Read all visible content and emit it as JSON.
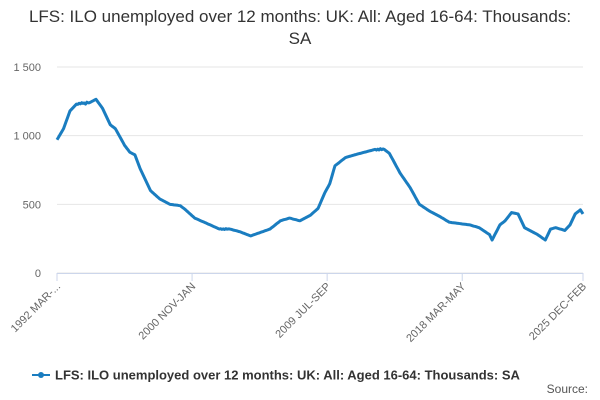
{
  "chart_data": {
    "type": "line",
    "title": "LFS: ILO unemployed over 12 months: UK: All: Aged 16-64: Thousands: SA",
    "source": "Source:",
    "categories": [
      "1992 MAR-...",
      null,
      null,
      null,
      null,
      null,
      null,
      null,
      null,
      null,
      null,
      null,
      null,
      null,
      null,
      null,
      null,
      null,
      null,
      null,
      null,
      null,
      null,
      null,
      null,
      null,
      null,
      null,
      null,
      null,
      null,
      null,
      null,
      null,
      null,
      null,
      null,
      null,
      null,
      null,
      null,
      null,
      null,
      null,
      null,
      null,
      null,
      null,
      null,
      null,
      null,
      null,
      null,
      null,
      null,
      null,
      null,
      null,
      null,
      null,
      null,
      null,
      null,
      null,
      null,
      null,
      null,
      null,
      null,
      null,
      null,
      null,
      null,
      null,
      null,
      null,
      null,
      null,
      null,
      null,
      null,
      null,
      null,
      null,
      null,
      null,
      null,
      null,
      null,
      null,
      null,
      null,
      null,
      null,
      null,
      null,
      null,
      null,
      null,
      null,
      null,
      null,
      null,
      null,
      "2000 NOV-JAN",
      null,
      null,
      null,
      null,
      null,
      null,
      null,
      null,
      null,
      null,
      null,
      null,
      null,
      null,
      null,
      null,
      null,
      null,
      null,
      null,
      null,
      null,
      null,
      null,
      null,
      null,
      null,
      null,
      null,
      null,
      null,
      null,
      null,
      null,
      null,
      null,
      null,
      null,
      null,
      null,
      null,
      null,
      null,
      null,
      null,
      null,
      null,
      null,
      null,
      null,
      null,
      null,
      null,
      null,
      null,
      null,
      null,
      null,
      null,
      null,
      null,
      null,
      null,
      null,
      null,
      null,
      null,
      null,
      null,
      null,
      null,
      null,
      null,
      null,
      null,
      null,
      null,
      null,
      null,
      null,
      null,
      null,
      null,
      null,
      null,
      null,
      null,
      null,
      null,
      null,
      null,
      null,
      null,
      null,
      null,
      null,
      null,
      null,
      null,
      null,
      null,
      null,
      null,
      "2009 JUL-SEP",
      null,
      null,
      null,
      null,
      null,
      null,
      null,
      null,
      null,
      null,
      null,
      null,
      null,
      null,
      null,
      null,
      null,
      null,
      null,
      null,
      null,
      null,
      null,
      null,
      null,
      null,
      null,
      null,
      null,
      null,
      null,
      null,
      null,
      null,
      null,
      null,
      null,
      null,
      null,
      null,
      null,
      null,
      null,
      null,
      null,
      null,
      null,
      null,
      null,
      null,
      null,
      null,
      null,
      null,
      null,
      null,
      null,
      null,
      null,
      null,
      null,
      null,
      null,
      null,
      null,
      null,
      null,
      null,
      null,
      null,
      null,
      null,
      null,
      null,
      null,
      null,
      null,
      null,
      null,
      null,
      null,
      null,
      null,
      null,
      null,
      null,
      null,
      null,
      null,
      null,
      null,
      null,
      null,
      null,
      null,
      null,
      null,
      null,
      null,
      null,
      null,
      null,
      null,
      "2018 MAR-MAY",
      null,
      null,
      null,
      null,
      null,
      null,
      null,
      null,
      null,
      null,
      null,
      null,
      null,
      null,
      null,
      null,
      null,
      null,
      null,
      null,
      null,
      null,
      null,
      null,
      null,
      null,
      null,
      null,
      null,
      null,
      null,
      null,
      null,
      null,
      null,
      null,
      null,
      null,
      null,
      null,
      null,
      null,
      null,
      null,
      null,
      null,
      null,
      null,
      null,
      null,
      null,
      null,
      null,
      null,
      null,
      null,
      null,
      null,
      null,
      null,
      null,
      null,
      null,
      null,
      null,
      null,
      null,
      null,
      null,
      null,
      null,
      null,
      null,
      null,
      null,
      null,
      null,
      null,
      null,
      null,
      null,
      null,
      null,
      null,
      null,
      null,
      null,
      null,
      null,
      null,
      null,
      null,
      "2025 DEC-FEB"
    ],
    "series": [
      {
        "name": "LFS: ILO unemployed over 12 months: UK: All: Aged 16-64: Thousands: SA",
        "color": "#1a7dc0",
        "values": [
          970,
          986,
          1002,
          1018,
          1034,
          1050,
          1076,
          1102,
          1128,
          1154,
          1180,
          1190,
          1200,
          1210,
          1220,
          1230,
          1228,
          1236,
          1232,
          1240,
          1235,
          1238,
          1230,
          1244,
          1239,
          1240,
          1245,
          1250,
          1255,
          1260,
          1265,
          1252,
          1239,
          1226,
          1213,
          1200,
          1180,
          1160,
          1140,
          1120,
          1100,
          1080,
          1072,
          1065,
          1058,
          1050,
          1033,
          1016,
          999,
          982,
          965,
          948,
          930,
          918,
          905,
          893,
          880,
          875,
          870,
          865,
          860,
          835,
          810,
          785,
          760,
          740,
          720,
          700,
          680,
          660,
          640,
          620,
          600,
          591,
          583,
          574,
          566,
          557,
          549,
          540,
          535,
          530,
          525,
          520,
          515,
          510,
          505,
          500,
          499,
          498,
          496,
          495,
          494,
          493,
          491,
          490,
          482,
          475,
          468,
          460,
          451,
          443,
          434,
          426,
          417,
          409,
          400,
          396,
          392,
          388,
          383,
          379,
          375,
          371,
          367,
          363,
          358,
          354,
          350,
          346,
          341,
          337,
          333,
          329,
          324,
          320,
          322,
          318,
          321,
          317,
          323,
          319,
          321,
          320,
          318,
          315,
          312,
          310,
          308,
          305,
          302,
          300,
          296,
          292,
          289,
          285,
          281,
          278,
          274,
          270,
          273,
          277,
          280,
          283,
          287,
          290,
          293,
          297,
          300,
          303,
          307,
          310,
          313,
          317,
          320,
          328,
          335,
          342,
          350,
          358,
          365,
          372,
          380,
          383,
          386,
          389,
          391,
          394,
          397,
          400,
          398,
          395,
          392,
          390,
          388,
          385,
          382,
          380,
          385,
          390,
          395,
          400,
          405,
          410,
          415,
          420,
          428,
          437,
          445,
          453,
          462,
          470,
          492,
          514,
          536,
          558,
          580,
          598,
          615,
          632,
          650,
          682,
          715,
          748,
          780,
          788,
          795,
          802,
          810,
          818,
          825,
          832,
          840,
          843,
          846,
          849,
          851,
          854,
          857,
          860,
          862,
          865,
          868,
          870,
          872,
          875,
          878,
          880,
          882,
          885,
          888,
          890,
          892,
          895,
          898,
          900,
          895,
          902,
          896,
          905,
          898,
          903,
          900,
          892,
          885,
          878,
          870,
          852,
          835,
          818,
          800,
          782,
          765,
          748,
          730,
          716,
          702,
          689,
          675,
          661,
          648,
          634,
          620,
          603,
          586,
          569,
          551,
          534,
          517,
          500,
          494,
          488,
          481,
          475,
          469,
          462,
          456,
          450,
          445,
          440,
          435,
          430,
          425,
          420,
          415,
          410,
          404,
          399,
          393,
          387,
          381,
          376,
          370,
          369,
          367,
          366,
          365,
          364,
          362,
          361,
          360,
          359,
          357,
          356,
          355,
          354,
          352,
          351,
          350,
          347,
          344,
          341,
          339,
          336,
          333,
          330,
          324,
          318,
          311,
          305,
          299,
          292,
          286,
          280,
          260,
          240,
          258,
          277,
          295,
          313,
          332,
          350,
          358,
          365,
          372,
          380,
          392,
          404,
          416,
          428,
          440,
          438,
          436,
          434,
          432,
          430,
          410,
          390,
          370,
          350,
          330,
          325,
          320,
          315,
          310,
          305,
          300,
          295,
          290,
          285,
          280,
          273,
          267,
          260,
          253,
          247,
          240,
          260,
          280,
          300,
          320,
          322,
          325,
          328,
          330,
          327,
          324,
          321,
          319,
          316,
          313,
          310,
          320,
          330,
          340,
          350,
          370,
          390,
          410,
          430,
          438,
          445,
          452,
          460,
          445,
          430
        ]
      }
    ],
    "ylim": [
      0,
      1500
    ],
    "yticks": [
      0,
      500,
      {
        "value": 1000,
        "label": "1 000"
      },
      {
        "value": 1500,
        "label": "1 500"
      }
    ],
    "grid": true,
    "legend": "bottom"
  }
}
